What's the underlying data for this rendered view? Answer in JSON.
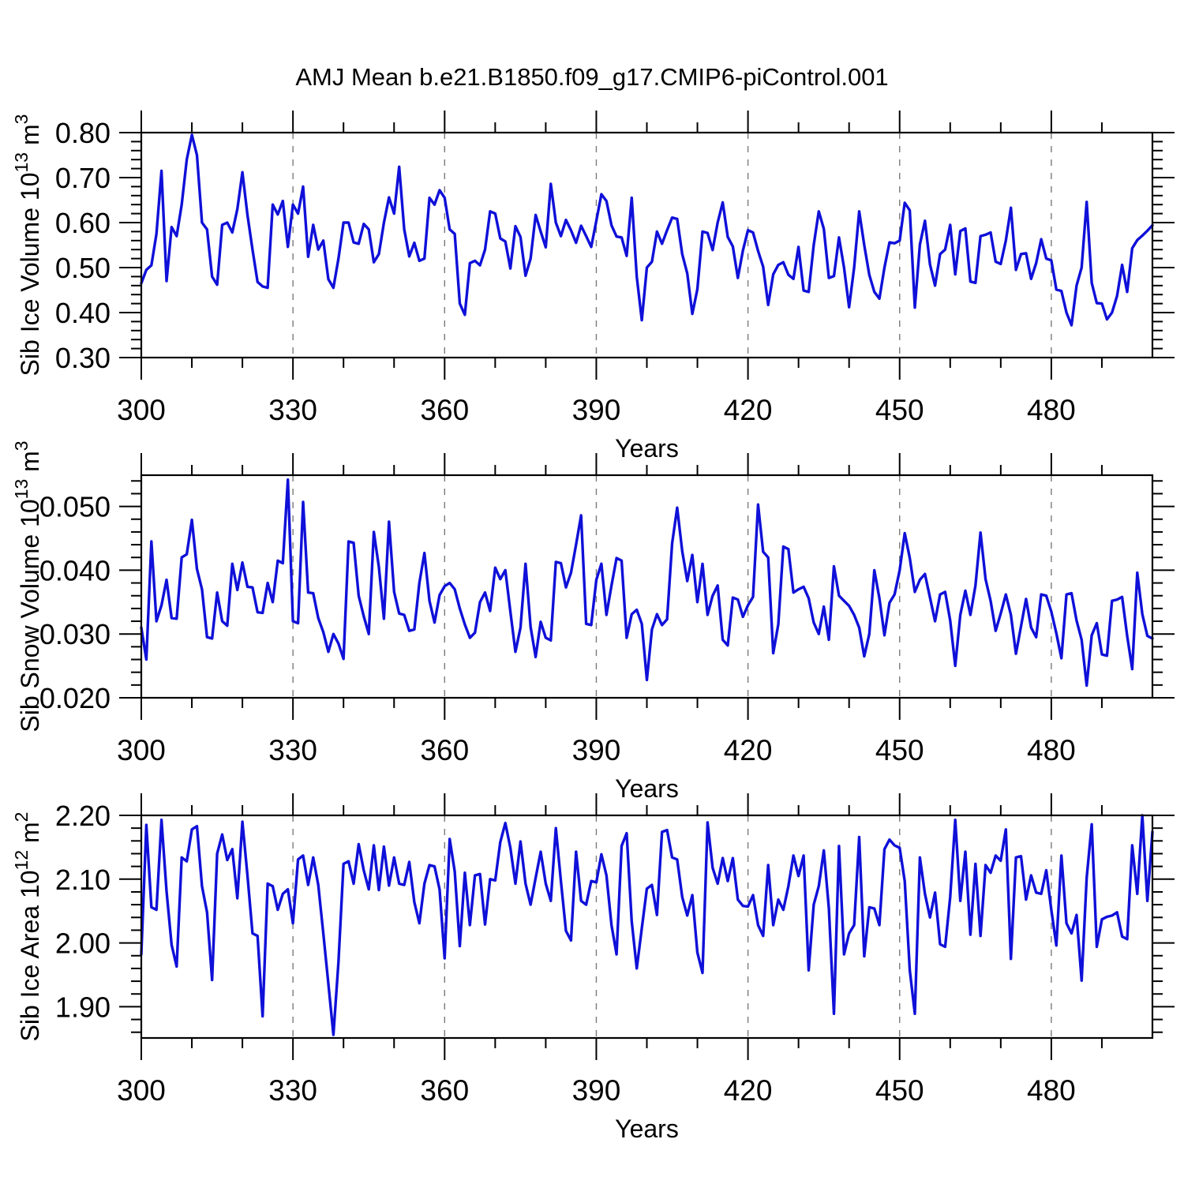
{
  "title": "AMJ Mean b.e21.B1850.f09_g17.CMIP6-piControl.001",
  "xlabel": "Years",
  "line_color": "#0f10d8",
  "x_major_ticks": [
    300,
    330,
    360,
    390,
    420,
    450,
    480
  ],
  "x_minor_step": 10,
  "grid_years": [
    330,
    360,
    390,
    420,
    450,
    480
  ],
  "chart_data": [
    {
      "type": "line",
      "name": "sib-ice-volume",
      "title": "",
      "ylabel_text": "Sib Ice Volume 10^13 m^3",
      "ylabel": [
        {
          "t": "Sib Ice Volume 10"
        },
        {
          "t": "13",
          "sup": true
        },
        {
          "t": " m"
        },
        {
          "t": "3",
          "sup": true
        }
      ],
      "xlabel": "Years",
      "xlim": [
        300,
        500
      ],
      "ylim": [
        0.3,
        0.8
      ],
      "x_start": 300,
      "x_step": 1,
      "yticks": [
        {
          "v": 0.3,
          "label": "0.30"
        },
        {
          "v": 0.4,
          "label": "0.40"
        },
        {
          "v": 0.5,
          "label": "0.50"
        },
        {
          "v": 0.6,
          "label": "0.60"
        },
        {
          "v": 0.7,
          "label": "0.70"
        },
        {
          "v": 0.8,
          "label": "0.80"
        }
      ],
      "y_minor_step": 0.02,
      "values": [
        0.465,
        0.495,
        0.505,
        0.575,
        0.715,
        0.47,
        0.59,
        0.57,
        0.64,
        0.74,
        0.795,
        0.75,
        0.6,
        0.585,
        0.48,
        0.462,
        0.595,
        0.6,
        0.578,
        0.63,
        0.712,
        0.617,
        0.54,
        0.468,
        0.458,
        0.455,
        0.64,
        0.618,
        0.648,
        0.546,
        0.64,
        0.62,
        0.68,
        0.524,
        0.595,
        0.54,
        0.56,
        0.474,
        0.455,
        0.52,
        0.6,
        0.6,
        0.556,
        0.553,
        0.597,
        0.585,
        0.512,
        0.53,
        0.6,
        0.656,
        0.62,
        0.724,
        0.585,
        0.525,
        0.555,
        0.515,
        0.52,
        0.655,
        0.64,
        0.672,
        0.655,
        0.585,
        0.575,
        0.42,
        0.395,
        0.51,
        0.515,
        0.505,
        0.54,
        0.625,
        0.62,
        0.565,
        0.558,
        0.498,
        0.592,
        0.568,
        0.482,
        0.52,
        0.617,
        0.58,
        0.545,
        0.686,
        0.6,
        0.57,
        0.606,
        0.583,
        0.555,
        0.593,
        0.57,
        0.546,
        0.604,
        0.663,
        0.648,
        0.594,
        0.569,
        0.567,
        0.526,
        0.655,
        0.48,
        0.383,
        0.5,
        0.513,
        0.58,
        0.553,
        0.583,
        0.611,
        0.608,
        0.53,
        0.487,
        0.397,
        0.452,
        0.58,
        0.577,
        0.539,
        0.6,
        0.645,
        0.568,
        0.547,
        0.477,
        0.538,
        0.583,
        0.578,
        0.537,
        0.502,
        0.417,
        0.485,
        0.506,
        0.512,
        0.484,
        0.475,
        0.546,
        0.449,
        0.446,
        0.55,
        0.625,
        0.586,
        0.477,
        0.481,
        0.567,
        0.5,
        0.412,
        0.5,
        0.625,
        0.55,
        0.484,
        0.446,
        0.431,
        0.5,
        0.556,
        0.554,
        0.56,
        0.644,
        0.627,
        0.411,
        0.551,
        0.604,
        0.507,
        0.46,
        0.53,
        0.54,
        0.595,
        0.485,
        0.581,
        0.587,
        0.469,
        0.466,
        0.57,
        0.573,
        0.578,
        0.513,
        0.508,
        0.56,
        0.633,
        0.495,
        0.53,
        0.532,
        0.475,
        0.51,
        0.563,
        0.52,
        0.516,
        0.451,
        0.448,
        0.4,
        0.372,
        0.46,
        0.5,
        0.646,
        0.466,
        0.421,
        0.42,
        0.385,
        0.4,
        0.437,
        0.506,
        0.446,
        0.543,
        0.561,
        0.571,
        0.582,
        0.594
      ]
    },
    {
      "type": "line",
      "name": "sib-snow-volume",
      "title": "",
      "ylabel_text": "Sib Snow Volume 10^13 m^3",
      "ylabel": [
        {
          "t": "Sib Snow Volume 10"
        },
        {
          "t": "13",
          "sup": true
        },
        {
          "t": " m"
        },
        {
          "t": "3",
          "sup": true
        }
      ],
      "xlabel": "Years",
      "xlim": [
        300,
        500
      ],
      "ylim": [
        0.02,
        0.0549
      ],
      "x_start": 300,
      "x_step": 1,
      "yticks": [
        {
          "v": 0.02,
          "label": "0.020"
        },
        {
          "v": 0.03,
          "label": "0.030"
        },
        {
          "v": 0.04,
          "label": "0.040"
        },
        {
          "v": 0.05,
          "label": "0.050"
        }
      ],
      "y_minor_step": 0.002,
      "values": [
        0.031,
        0.026,
        0.0445,
        0.032,
        0.0345,
        0.0385,
        0.0325,
        0.0324,
        0.042,
        0.0425,
        0.0479,
        0.0402,
        0.037,
        0.0295,
        0.0293,
        0.0365,
        0.032,
        0.0313,
        0.041,
        0.0369,
        0.0412,
        0.0374,
        0.0373,
        0.0334,
        0.0333,
        0.038,
        0.035,
        0.0415,
        0.0411,
        0.0542,
        0.032,
        0.0317,
        0.0507,
        0.0365,
        0.0364,
        0.0325,
        0.0303,
        0.0272,
        0.03,
        0.0285,
        0.0261,
        0.0445,
        0.0443,
        0.036,
        0.0328,
        0.03,
        0.046,
        0.0405,
        0.0324,
        0.0476,
        0.0366,
        0.0332,
        0.033,
        0.0305,
        0.0307,
        0.038,
        0.0427,
        0.0352,
        0.0318,
        0.0361,
        0.0375,
        0.038,
        0.037,
        0.034,
        0.0315,
        0.0294,
        0.0302,
        0.035,
        0.0365,
        0.0336,
        0.0404,
        0.0386,
        0.04,
        0.0335,
        0.0272,
        0.031,
        0.041,
        0.0311,
        0.0264,
        0.0319,
        0.0294,
        0.029,
        0.0413,
        0.0411,
        0.0373,
        0.0396,
        0.044,
        0.0486,
        0.0316,
        0.0314,
        0.0385,
        0.041,
        0.033,
        0.0376,
        0.0419,
        0.0415,
        0.0294,
        0.0331,
        0.0338,
        0.0316,
        0.0228,
        0.0307,
        0.0331,
        0.0314,
        0.0323,
        0.0442,
        0.0498,
        0.043,
        0.0383,
        0.0424,
        0.035,
        0.041,
        0.033,
        0.036,
        0.0376,
        0.0291,
        0.0282,
        0.0357,
        0.0354,
        0.0327,
        0.0345,
        0.0358,
        0.0503,
        0.0429,
        0.042,
        0.027,
        0.0315,
        0.0437,
        0.0433,
        0.0365,
        0.037,
        0.0374,
        0.0356,
        0.0318,
        0.03,
        0.0343,
        0.0291,
        0.0406,
        0.036,
        0.0352,
        0.0344,
        0.033,
        0.031,
        0.0265,
        0.03,
        0.04,
        0.0356,
        0.0298,
        0.0349,
        0.0362,
        0.04,
        0.0458,
        0.0419,
        0.0366,
        0.0385,
        0.0394,
        0.0357,
        0.032,
        0.0362,
        0.0366,
        0.0321,
        0.025,
        0.033,
        0.0368,
        0.033,
        0.0376,
        0.0459,
        0.0386,
        0.0352,
        0.0305,
        0.0332,
        0.0362,
        0.033,
        0.0269,
        0.0312,
        0.0355,
        0.031,
        0.0295,
        0.0362,
        0.036,
        0.0335,
        0.0301,
        0.0262,
        0.0362,
        0.0364,
        0.0321,
        0.0291,
        0.0219,
        0.0298,
        0.0317,
        0.0268,
        0.0266,
        0.0352,
        0.0354,
        0.0358,
        0.0297,
        0.0245,
        0.0396,
        0.0331,
        0.0297,
        0.0293
      ]
    },
    {
      "type": "line",
      "name": "sib-ice-area",
      "title": "",
      "ylabel_text": "Sib Ice Area 10^12 m^2",
      "ylabel": [
        {
          "t": "Sib Ice Area 10"
        },
        {
          "t": "12",
          "sup": true
        },
        {
          "t": " m"
        },
        {
          "t": "2",
          "sup": true
        }
      ],
      "xlabel": "Years",
      "xlim": [
        300,
        500
      ],
      "ylim": [
        1.851,
        2.2
      ],
      "x_start": 300,
      "x_step": 1,
      "yticks": [
        {
          "v": 1.9,
          "label": "1.90"
        },
        {
          "v": 2.0,
          "label": "2.00"
        },
        {
          "v": 2.1,
          "label": "2.10"
        },
        {
          "v": 2.2,
          "label": "2.20"
        }
      ],
      "y_minor_step": 0.02,
      "values": [
        1.982,
        2.185,
        2.056,
        2.052,
        2.193,
        2.081,
        1.997,
        1.963,
        2.134,
        2.128,
        2.178,
        2.183,
        2.089,
        2.048,
        1.942,
        2.14,
        2.17,
        2.13,
        2.147,
        2.07,
        2.19,
        2.106,
        2.015,
        2.011,
        1.885,
        2.093,
        2.089,
        2.052,
        2.077,
        2.084,
        2.031,
        2.131,
        2.137,
        2.091,
        2.134,
        2.091,
        2.015,
        1.936,
        1.856,
        1.97,
        2.124,
        2.128,
        2.093,
        2.155,
        2.114,
        2.084,
        2.153,
        2.083,
        2.151,
        2.09,
        2.134,
        2.093,
        2.091,
        2.127,
        2.064,
        2.031,
        2.093,
        2.122,
        2.12,
        2.084,
        1.976,
        2.163,
        2.112,
        1.995,
        2.11,
        2.028,
        2.106,
        2.108,
        2.029,
        2.1,
        2.098,
        2.158,
        2.188,
        2.149,
        2.093,
        2.159,
        2.093,
        2.06,
        2.102,
        2.143,
        2.093,
        2.066,
        2.18,
        2.097,
        2.019,
        2.004,
        2.143,
        2.066,
        2.06,
        2.097,
        2.095,
        2.139,
        2.106,
        2.028,
        1.982,
        2.152,
        2.172,
        2.034,
        1.96,
        2.023,
        2.085,
        2.091,
        2.044,
        2.174,
        2.177,
        2.134,
        2.131,
        2.072,
        2.043,
        2.075,
        1.985,
        1.953,
        2.189,
        2.118,
        2.093,
        2.133,
        2.097,
        2.133,
        2.068,
        2.058,
        2.057,
        2.075,
        2.028,
        2.011,
        2.122,
        2.028,
        2.068,
        2.052,
        2.089,
        2.137,
        2.105,
        2.137,
        1.957,
        2.06,
        2.089,
        2.145,
        2.054,
        1.889,
        2.152,
        1.982,
        2.015,
        2.028,
        2.166,
        1.979,
        2.056,
        2.054,
        2.028,
        2.147,
        2.162,
        2.153,
        2.149,
        2.097,
        1.957,
        1.889,
        2.134,
        2.077,
        2.04,
        2.079,
        1.998,
        1.994,
        2.072,
        2.193,
        2.066,
        2.143,
        2.013,
        2.124,
        2.011,
        2.122,
        2.11,
        2.137,
        2.129,
        2.178,
        1.975,
        2.134,
        2.136,
        2.068,
        2.106,
        2.079,
        2.077,
        2.114,
        2.052,
        1.996,
        2.137,
        2.031,
        2.015,
        2.044,
        1.941,
        2.102,
        2.186,
        1.994,
        2.037,
        2.041,
        2.043,
        2.048,
        2.01,
        2.006,
        2.153,
        2.077,
        2.2,
        2.066,
        2.174
      ]
    }
  ]
}
